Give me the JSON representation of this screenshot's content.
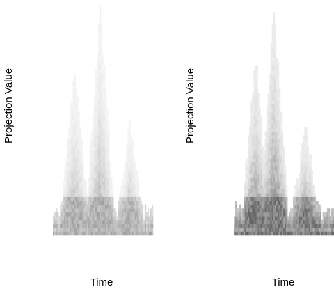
{
  "chart_data": [
    {
      "type": "heatmap",
      "xlabel": "Time",
      "ylabel": "Projection Value",
      "grid": false,
      "intensity": "light",
      "x": [
        0,
        1,
        2,
        3,
        4,
        5,
        6,
        7,
        8,
        9,
        10,
        11,
        12,
        13,
        14,
        15,
        16,
        17,
        18,
        19,
        20,
        21,
        22,
        23,
        24,
        25,
        26,
        27,
        28,
        29,
        30,
        31,
        32,
        33,
        34,
        35,
        36,
        37,
        38,
        39,
        40,
        41,
        42,
        43,
        44,
        45,
        46,
        47,
        48,
        49,
        50,
        51,
        52,
        53,
        54,
        55,
        56,
        57,
        58,
        59,
        60,
        61,
        62,
        63,
        64,
        65,
        66,
        67,
        68,
        69,
        70
      ],
      "peaks": [
        {
          "center": 15,
          "top": 0.72
        },
        {
          "center": 33,
          "top": 0.97
        },
        {
          "center": 54,
          "top": 0.47
        }
      ]
    },
    {
      "type": "heatmap",
      "xlabel": "Time",
      "ylabel": "Projection Value",
      "grid": false,
      "intensity": "dark",
      "x": [
        0,
        1,
        2,
        3,
        4,
        5,
        6,
        7,
        8,
        9,
        10,
        11,
        12,
        13,
        14,
        15,
        16,
        17,
        18,
        19,
        20,
        21,
        22,
        23,
        24,
        25,
        26,
        27,
        28,
        29,
        30,
        31,
        32,
        33,
        34,
        35,
        36,
        37,
        38,
        39,
        40,
        41,
        42,
        43,
        44,
        45,
        46,
        47,
        48,
        49,
        50,
        51,
        52,
        53,
        54,
        55,
        56,
        57,
        58,
        59,
        60,
        61,
        62,
        63,
        64,
        65,
        66,
        67,
        68,
        69,
        70
      ],
      "peaks": [
        {
          "center": 15,
          "top": 0.75
        },
        {
          "center": 28,
          "top": 0.98
        },
        {
          "center": 50,
          "top": 0.47
        }
      ]
    }
  ]
}
